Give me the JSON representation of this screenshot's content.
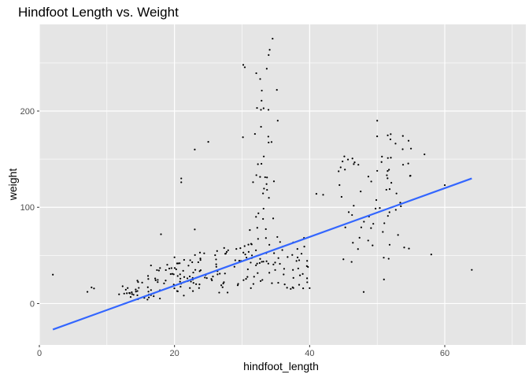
{
  "chart_data": {
    "type": "scatter",
    "title": "Hindfoot Length vs. Weight",
    "xlabel": "hindfoot_length",
    "ylabel": "weight",
    "xlim": [
      0,
      72
    ],
    "ylim": [
      -43,
      290
    ],
    "xticks": [
      0,
      20,
      40,
      60
    ],
    "yticks": [
      0,
      100,
      200
    ],
    "xtick_labels": [
      "0",
      "20",
      "40",
      "60"
    ],
    "ytick_labels": [
      "0",
      "100",
      "200"
    ],
    "grid": true,
    "colors": {
      "panel_bg": "#e5e5e5",
      "grid": "#ffffff",
      "points": "#000000",
      "trend": "#3366ff"
    },
    "series": [
      {
        "type": "points",
        "clusters": [
          {
            "x": [
              6,
              16
            ],
            "y": [
              7,
              18
            ],
            "n": 12
          },
          {
            "x": [
              12,
              18
            ],
            "y": [
              4,
              25
            ],
            "n": 22
          },
          {
            "x": [
              16,
              22
            ],
            "y": [
              5,
              42
            ],
            "n": 30
          },
          {
            "x": [
              20,
              24
            ],
            "y": [
              8,
              46
            ],
            "n": 26
          },
          {
            "x": [
              22,
              28
            ],
            "y": [
              10,
              55
            ],
            "n": 26
          },
          {
            "x": [
              26,
              32
            ],
            "y": [
              15,
              62
            ],
            "n": 26
          },
          {
            "x": [
              30,
              34
            ],
            "y": [
              15,
              250
            ],
            "n": 30
          },
          {
            "x": [
              32,
              36
            ],
            "y": [
              20,
              280
            ],
            "n": 30
          },
          {
            "x": [
              30,
              40
            ],
            "y": [
              20,
              70
            ],
            "n": 30
          },
          {
            "x": [
              34,
              40
            ],
            "y": [
              15,
              60
            ],
            "n": 22
          },
          {
            "x": [
              44,
              48
            ],
            "y": [
              40,
              165
            ],
            "n": 22
          },
          {
            "x": [
              48,
              52
            ],
            "y": [
              45,
              175
            ],
            "n": 26
          },
          {
            "x": [
              51,
              55
            ],
            "y": [
              50,
              180
            ],
            "n": 22
          }
        ],
        "outliers": [
          [
            2,
            30
          ],
          [
            21,
            130
          ],
          [
            21,
            126
          ],
          [
            23,
            160
          ],
          [
            25,
            168
          ],
          [
            20,
            48
          ],
          [
            18,
            72
          ],
          [
            23,
            77
          ],
          [
            41,
            114
          ],
          [
            42,
            113
          ],
          [
            40,
            16
          ],
          [
            45,
            46
          ],
          [
            58,
            51
          ],
          [
            64,
            35
          ],
          [
            60,
            123
          ],
          [
            55,
            161
          ],
          [
            57,
            155
          ],
          [
            50,
            190
          ],
          [
            48,
            12
          ],
          [
            51,
            25
          ],
          [
            52,
            176
          ]
        ]
      },
      {
        "type": "trend_line",
        "x": [
          2,
          64
        ],
        "y": [
          -27,
          130
        ]
      }
    ]
  }
}
